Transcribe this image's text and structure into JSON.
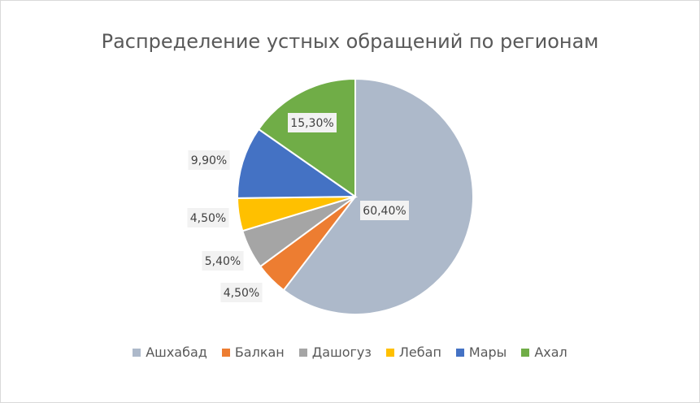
{
  "chart_data": {
    "type": "pie",
    "title": "Распределение устных обращений по регионам",
    "categories": [
      "Ашхабад",
      "Балкан",
      "Дашогуз",
      "Лебап",
      "Мары",
      "Ахал"
    ],
    "values": [
      60.4,
      4.5,
      5.4,
      4.5,
      9.9,
      15.3
    ],
    "data_labels": [
      "60,40%",
      "4,50%",
      "5,40%",
      "4,50%",
      "9,90%",
      "15,30%"
    ],
    "colors": [
      "#ADB9CA",
      "#ED7D31",
      "#A5A5A5",
      "#FFC000",
      "#4472C4",
      "#70AD47"
    ],
    "legend_position": "bottom"
  }
}
